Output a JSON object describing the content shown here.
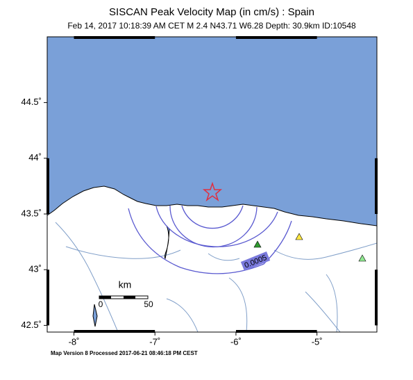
{
  "header": {
    "title": "SISCAN Peak Velocity Map (in cm/s) : Spain",
    "subtitle": "Feb 14, 2017 10:18:39 AM CET   M 2.4   N43.71 W6.28   Depth: 30.9km   ID:10548"
  },
  "map": {
    "xlim": [
      -8.33,
      -4.26
    ],
    "ylim": [
      42.44,
      45.09
    ],
    "xticks": [
      {
        "value": -8,
        "label": "-8˚"
      },
      {
        "value": -7,
        "label": "-7˚"
      },
      {
        "value": -6,
        "label": "-6˚"
      },
      {
        "value": -5,
        "label": "-5˚"
      }
    ],
    "yticks": [
      {
        "value": 42.5,
        "label": "42.5˚"
      },
      {
        "value": 43,
        "label": "43˚"
      },
      {
        "value": 43.5,
        "label": "43.5˚"
      },
      {
        "value": 44,
        "label": "44˚"
      },
      {
        "value": 44.5,
        "label": "44.5˚"
      }
    ],
    "contour_label": "0.0005",
    "scale_bar": {
      "unit": "km",
      "start": "0",
      "end": "50"
    }
  },
  "footer": "Map Version 8 Processed 2017-06-21 08:46:18 PM CEST"
}
